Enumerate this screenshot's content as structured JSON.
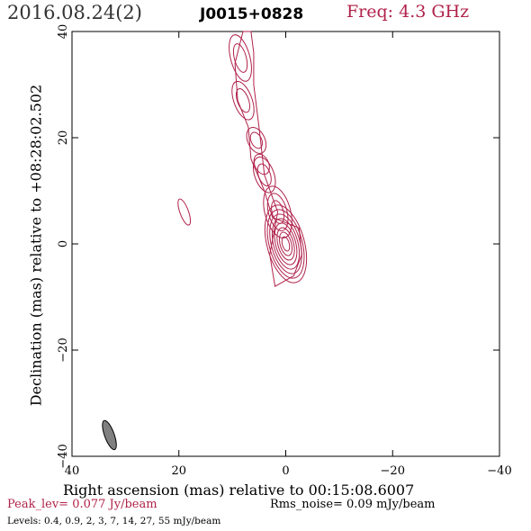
{
  "header": {
    "date": "2016.08.24(2)",
    "source": "J0015+0828",
    "freq": "Freq: 4.3 GHz"
  },
  "footer": {
    "peak": "Peak_lev=  0.077 Jy/beam",
    "rms": "Rms_noise= 0.09 mJy/beam",
    "levels": "Levels: 0.4, 0.9,   2,   3,   7,  14,  27,  55 mJy/beam"
  },
  "colors": {
    "contour": "#b0224a",
    "beam": "#808080",
    "axis": "#000000"
  },
  "chart_data": {
    "type": "contour",
    "xlabel": "Right ascension (mas) relative to 00:15:08.6007",
    "ylabel": "Declination (mas) relative to +08:28:02.502",
    "xlim": [
      40,
      -40
    ],
    "ylim": [
      -40,
      40
    ],
    "xticks": [
      40,
      20,
      0,
      -20,
      -40
    ],
    "yticks": [
      -40,
      -20,
      0,
      20,
      40
    ],
    "xtick_labels": [
      "40",
      "20",
      "0",
      "−20",
      "−40"
    ],
    "ytick_labels": [
      "−40",
      "−20",
      "0",
      "20",
      "40"
    ],
    "contour_levels_mJy": [
      0.4,
      0.9,
      2,
      3,
      7,
      14,
      27,
      55
    ],
    "peak_Jy_per_beam": 0.077,
    "rms_noise_mJy_per_beam": 0.09,
    "components": [
      {
        "name": "core",
        "x": 0,
        "y": 0,
        "rx": 3.5,
        "ry": 7.5,
        "pa": -15,
        "levels": 8
      },
      {
        "name": "inner-knot",
        "x": 1.5,
        "y": 6,
        "rx": 2.4,
        "ry": 5,
        "pa": -15,
        "levels": 3
      },
      {
        "name": "jet-knot-a",
        "x": 4,
        "y": 13,
        "rx": 1.8,
        "ry": 3.5,
        "pa": -20,
        "levels": 2
      },
      {
        "name": "jet-knot-b",
        "x": 5.5,
        "y": 19.5,
        "rx": 1.6,
        "ry": 2.6,
        "pa": -25,
        "levels": 2
      },
      {
        "name": "jet-knot-c",
        "x": 4.5,
        "y": 15,
        "rx": 1.3,
        "ry": 2.0,
        "pa": -25,
        "levels": 1
      },
      {
        "name": "jet-knot-d",
        "x": 8,
        "y": 27,
        "rx": 1.7,
        "ry": 3.8,
        "pa": -20,
        "levels": 2
      },
      {
        "name": "jet-knot-e",
        "x": 8.5,
        "y": 35,
        "rx": 1.8,
        "ry": 4.5,
        "pa": -15,
        "levels": 2
      },
      {
        "name": "isolated-blob",
        "x": 19,
        "y": 6,
        "rx": 0.8,
        "ry": 2.6,
        "pa": -20,
        "levels": 1
      }
    ],
    "jet_envelope": [
      [
        8,
        40
      ],
      [
        9.5,
        34
      ],
      [
        9,
        27
      ],
      [
        7,
        22
      ],
      [
        6.5,
        16
      ],
      [
        4,
        10
      ],
      [
        2.5,
        5
      ],
      [
        -2.5,
        3
      ],
      [
        -3,
        -2
      ],
      [
        -1.5,
        -6
      ],
      [
        2,
        -8
      ],
      [
        3,
        -2
      ],
      [
        1.5,
        6
      ],
      [
        4,
        13
      ],
      [
        5,
        22
      ],
      [
        6,
        30
      ],
      [
        6,
        36
      ],
      [
        6.5,
        40
      ]
    ],
    "beam": {
      "x": 33,
      "y": -36,
      "rx": 0.9,
      "ry": 2.9,
      "pa": -20
    }
  }
}
